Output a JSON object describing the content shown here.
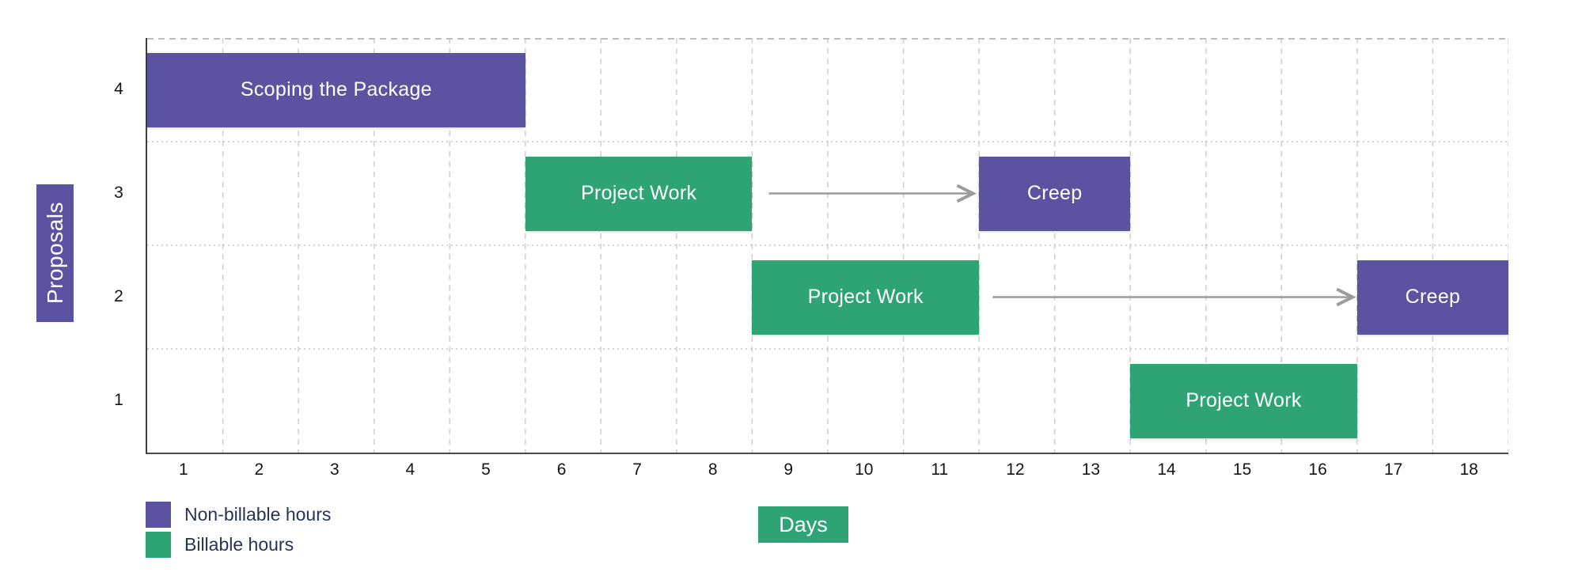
{
  "chart_data": {
    "type": "gantt",
    "title": "",
    "xlabel": "Days",
    "ylabel": "Proposals",
    "x_range": [
      0.5,
      18.5
    ],
    "x_ticks": [
      "1",
      "2",
      "3",
      "4",
      "5",
      "6",
      "7",
      "8",
      "9",
      "10",
      "11",
      "12",
      "13",
      "14",
      "15",
      "16",
      "17",
      "18"
    ],
    "y_ticks_top_to_bottom": [
      "4",
      "3",
      "2",
      "1"
    ],
    "rows": 4,
    "grid": {
      "vertical": "dashed at every day boundary",
      "horizontal": "dotted at row boundaries",
      "top_border": "dashed"
    },
    "bars": [
      {
        "proposal": 4,
        "label": "Scoping the Package",
        "start": 0.5,
        "end": 5.5,
        "duration_days": 5,
        "category": "non_billable"
      },
      {
        "proposal": 3,
        "label": "Project Work",
        "start": 5.5,
        "end": 8.5,
        "duration_days": 3,
        "category": "billable"
      },
      {
        "proposal": 3,
        "label": "Creep",
        "start": 11.5,
        "end": 13.5,
        "duration_days": 2,
        "category": "non_billable"
      },
      {
        "proposal": 2,
        "label": "Project Work",
        "start": 8.5,
        "end": 11.5,
        "duration_days": 3,
        "category": "billable"
      },
      {
        "proposal": 2,
        "label": "Creep",
        "start": 16.5,
        "end": 18.5,
        "duration_days": 2,
        "category": "non_billable"
      },
      {
        "proposal": 1,
        "label": "Project Work",
        "start": 13.5,
        "end": 16.5,
        "duration_days": 3,
        "category": "billable"
      }
    ],
    "arrows": [
      {
        "proposal": 3,
        "from": 8.72,
        "to": 11.42
      },
      {
        "proposal": 2,
        "from": 11.68,
        "to": 16.44
      }
    ],
    "legend": [
      {
        "label": "Non-billable hours",
        "category": "non_billable"
      },
      {
        "label": "Billable hours",
        "category": "billable"
      }
    ],
    "colors": {
      "non_billable": "#5c52a2",
      "billable": "#2ea475",
      "bar_text": "#ffffff",
      "legend_text": "#263357",
      "tick_text": "#141414",
      "axis": "#3f3f3f",
      "grid_vertical": "#cfcfcf",
      "grid_horizontal": "#c6c6c6",
      "grid_top": "#bdbdbd",
      "arrow": "#9c9c9c"
    },
    "legend_position": "bottom-left"
  }
}
